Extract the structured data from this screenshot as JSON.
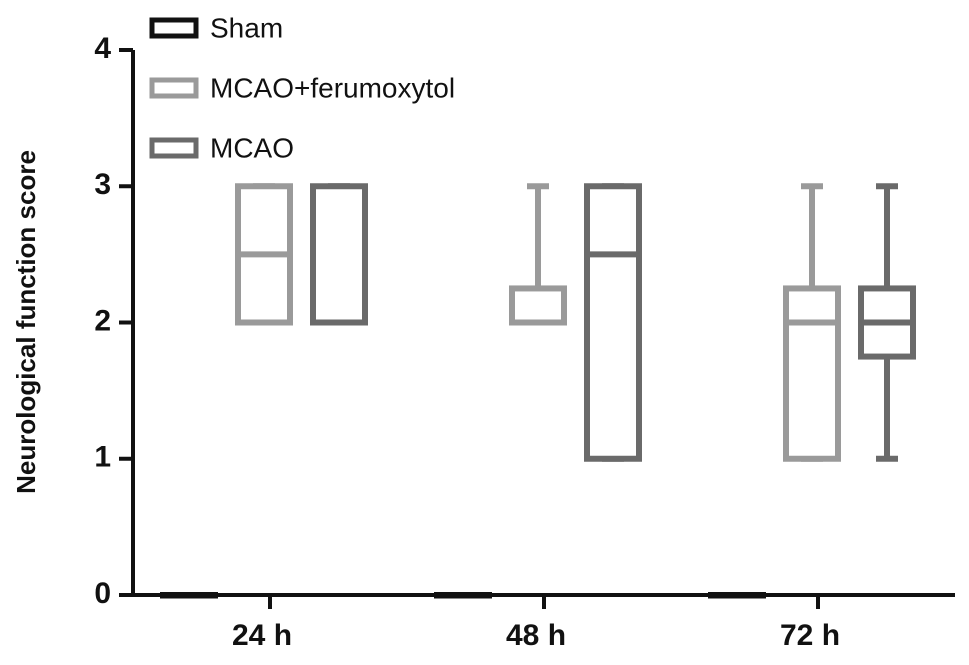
{
  "chart_data": {
    "type": "box",
    "y_label": "Neurological function score",
    "categories": [
      "24 h",
      "48 h",
      "72 h"
    ],
    "ylim": [
      0,
      4
    ],
    "yticks": [
      0,
      1,
      2,
      3,
      4
    ],
    "legend": "top-left",
    "series": [
      {
        "name": "Sham",
        "color": "#111111",
        "min": [
          0,
          0,
          0
        ],
        "q1": [
          0,
          0,
          0
        ],
        "median": [
          0,
          0,
          0
        ],
        "q3": [
          0,
          0,
          0
        ],
        "max": [
          0,
          0,
          0
        ]
      },
      {
        "name": "MCAO+ferumoxytol",
        "color": "#9a9a9a",
        "min": [
          2,
          2,
          1
        ],
        "q1": [
          2,
          2,
          1
        ],
        "median": [
          2.5,
          2,
          2
        ],
        "q3": [
          3,
          2.25,
          2.25
        ],
        "max": [
          3,
          3,
          3
        ]
      },
      {
        "name": "MCAO",
        "color": "#6a6a6a",
        "min": [
          2,
          1,
          1
        ],
        "q1": [
          2,
          1,
          1.75
        ],
        "median": [
          2,
          2.5,
          2
        ],
        "q3": [
          3,
          3,
          2.25
        ],
        "max": [
          3,
          3,
          3
        ]
      }
    ]
  }
}
